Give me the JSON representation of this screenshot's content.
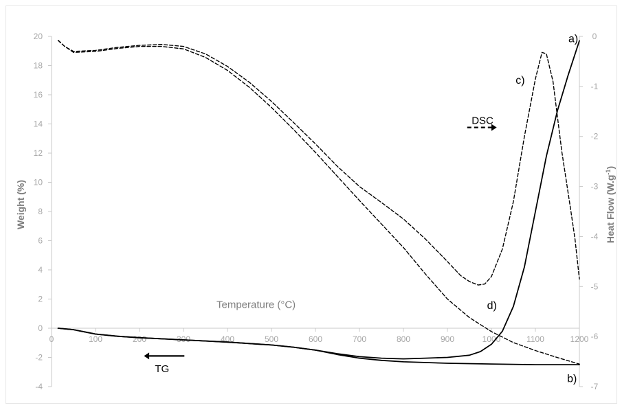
{
  "chart_data": {
    "type": "line",
    "xlabel": "Temperature (°C)",
    "ylabel": "Weight  (%)",
    "y2label_main": "Heat Flow (W.g",
    "y2label_sup": "-1",
    "y2label_close": ")",
    "xlim": [
      0,
      1200
    ],
    "ylim": [
      -4,
      20
    ],
    "y2lim": [
      -7,
      0
    ],
    "x_ticks": [
      "0",
      "100",
      "200",
      "300",
      "400",
      "500",
      "600",
      "700",
      "800",
      "900",
      "1000",
      "1100",
      "1200"
    ],
    "y_ticks": [
      "-4",
      "-2",
      "0",
      "2",
      "4",
      "6",
      "8",
      "10",
      "12",
      "14",
      "16",
      "18",
      "20"
    ],
    "y2_ticks": [
      "-7",
      "-6",
      "-5",
      "-4",
      "-3",
      "-2",
      "-1",
      "0"
    ],
    "grid": false,
    "annotations": {
      "a": "a)",
      "b": "b)",
      "c": "c)",
      "d": "d)",
      "dsc": "DSC",
      "tg": "TG"
    },
    "series": [
      {
        "id": "a",
        "style": "solid",
        "axis": "left",
        "x": [
          15,
          50,
          100,
          150,
          200,
          300,
          400,
          500,
          550,
          600,
          650,
          700,
          750,
          800,
          850,
          900,
          950,
          975,
          1000,
          1025,
          1050,
          1075,
          1100,
          1125,
          1150,
          1175,
          1200
        ],
        "y": [
          0,
          -0.1,
          -0.4,
          -0.55,
          -0.65,
          -0.8,
          -0.95,
          -1.15,
          -1.3,
          -1.5,
          -1.75,
          -1.95,
          -2.05,
          -2.1,
          -2.05,
          -2.0,
          -1.85,
          -1.6,
          -1.1,
          -0.2,
          1.5,
          4.2,
          8.0,
          11.8,
          14.9,
          17.4,
          19.7
        ]
      },
      {
        "id": "b",
        "style": "solid",
        "axis": "left",
        "x": [
          15,
          50,
          100,
          150,
          200,
          300,
          400,
          500,
          550,
          600,
          650,
          700,
          750,
          800,
          900,
          1000,
          1100,
          1200
        ],
        "y": [
          0,
          -0.1,
          -0.4,
          -0.55,
          -0.65,
          -0.8,
          -0.95,
          -1.15,
          -1.3,
          -1.5,
          -1.8,
          -2.05,
          -2.2,
          -2.3,
          -2.4,
          -2.45,
          -2.5,
          -2.5
        ]
      },
      {
        "id": "c",
        "style": "dashed",
        "axis": "right",
        "x": [
          15,
          30,
          50,
          100,
          150,
          200,
          250,
          300,
          350,
          400,
          450,
          500,
          550,
          600,
          650,
          700,
          750,
          800,
          850,
          900,
          930,
          950,
          970,
          985,
          1000,
          1025,
          1050,
          1075,
          1100,
          1115,
          1125,
          1140,
          1160,
          1180,
          1190,
          1200
        ],
        "y": [
          -0.08,
          -0.2,
          -0.3,
          -0.28,
          -0.22,
          -0.18,
          -0.16,
          -0.2,
          -0.35,
          -0.6,
          -0.92,
          -1.3,
          -1.72,
          -2.15,
          -2.6,
          -3.0,
          -3.32,
          -3.65,
          -4.05,
          -4.5,
          -4.78,
          -4.9,
          -4.97,
          -4.95,
          -4.8,
          -4.25,
          -3.3,
          -2.0,
          -0.85,
          -0.32,
          -0.35,
          -0.9,
          -2.3,
          -3.45,
          -4.05,
          -4.85
        ]
      },
      {
        "id": "d",
        "style": "dashed",
        "axis": "right",
        "x": [
          15,
          30,
          50,
          100,
          150,
          200,
          250,
          300,
          350,
          400,
          450,
          500,
          550,
          600,
          650,
          700,
          750,
          800,
          850,
          900,
          950,
          1000,
          1050,
          1100,
          1150,
          1200
        ],
        "y": [
          -0.08,
          -0.2,
          -0.32,
          -0.3,
          -0.24,
          -0.2,
          -0.2,
          -0.25,
          -0.42,
          -0.68,
          -1.02,
          -1.42,
          -1.86,
          -2.32,
          -2.8,
          -3.28,
          -3.75,
          -4.22,
          -4.75,
          -5.25,
          -5.62,
          -5.9,
          -6.12,
          -6.28,
          -6.42,
          -6.55
        ]
      }
    ]
  }
}
